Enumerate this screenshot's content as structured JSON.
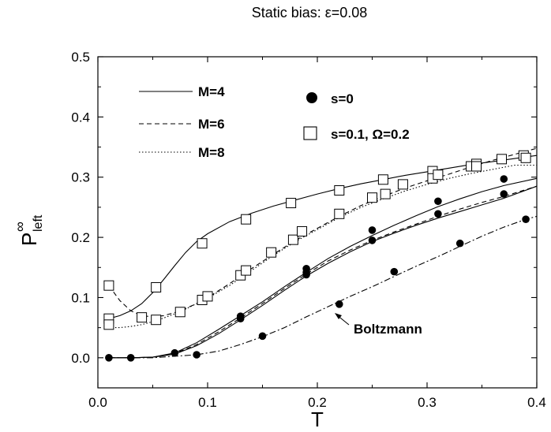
{
  "chart_data": {
    "type": "line",
    "title": "Static bias: ε=0.08",
    "xlabel": "T",
    "ylabel_main": "P",
    "ylabel_sup": "∞",
    "ylabel_sub": "left",
    "xlim": [
      0.0,
      0.4
    ],
    "ylim": [
      -0.05,
      0.5
    ],
    "x_ticks": [
      "0.0",
      "0.1",
      "0.2",
      "0.3",
      "0.4"
    ],
    "x_tick_values": [
      0.0,
      0.1,
      0.2,
      0.3,
      0.4
    ],
    "y_ticks": [
      "0.0",
      "0.1",
      "0.2",
      "0.3",
      "0.4",
      "0.5"
    ],
    "y_tick_values": [
      0.0,
      0.1,
      0.2,
      0.3,
      0.4,
      0.5
    ],
    "legend_lines": [
      {
        "label": "M=4",
        "dash": "solid"
      },
      {
        "label": "M=6",
        "dash": "dashed"
      },
      {
        "label": "M=8",
        "dash": "dotted"
      }
    ],
    "legend_markers": [
      {
        "label": "s=0",
        "marker": "filled-circle"
      },
      {
        "label": "s=0.1, Ω=0.2",
        "marker": "open-square"
      }
    ],
    "annotation": "Boltzmann",
    "series": [
      {
        "style": "solid",
        "group": "s0",
        "x": [
          0.01,
          0.03,
          0.05,
          0.07,
          0.09,
          0.11,
          0.13,
          0.15,
          0.17,
          0.19,
          0.21,
          0.23,
          0.25,
          0.27,
          0.29,
          0.31,
          0.33,
          0.35,
          0.37,
          0.4
        ],
        "y": [
          0.0,
          0.0,
          0.001,
          0.008,
          0.025,
          0.047,
          0.07,
          0.093,
          0.118,
          0.142,
          0.165,
          0.185,
          0.203,
          0.22,
          0.236,
          0.251,
          0.264,
          0.276,
          0.286,
          0.298
        ]
      },
      {
        "style": "dashed",
        "group": "s0",
        "x": [
          0.01,
          0.03,
          0.05,
          0.07,
          0.09,
          0.11,
          0.13,
          0.15,
          0.17,
          0.19,
          0.21,
          0.23,
          0.25,
          0.27,
          0.29,
          0.31,
          0.33,
          0.35,
          0.37,
          0.4
        ],
        "y": [
          0.0,
          0.0,
          0.001,
          0.007,
          0.022,
          0.043,
          0.066,
          0.09,
          0.115,
          0.139,
          0.161,
          0.179,
          0.195,
          0.209,
          0.222,
          0.235,
          0.247,
          0.258,
          0.268,
          0.285
        ]
      },
      {
        "style": "solid",
        "group": "s0",
        "x": [
          0.01,
          0.03,
          0.05,
          0.07,
          0.09,
          0.11,
          0.13,
          0.15,
          0.17,
          0.19,
          0.21,
          0.23,
          0.25,
          0.27,
          0.29,
          0.31,
          0.33,
          0.35,
          0.37,
          0.4
        ],
        "y": [
          0.0,
          0.0,
          0.001,
          0.006,
          0.02,
          0.04,
          0.063,
          0.087,
          0.112,
          0.136,
          0.157,
          0.176,
          0.193,
          0.207,
          0.22,
          0.232,
          0.243,
          0.254,
          0.265,
          0.285
        ]
      },
      {
        "style": "dashdot",
        "group": "boltzmann",
        "x": [
          0.01,
          0.05,
          0.09,
          0.11,
          0.13,
          0.15,
          0.17,
          0.19,
          0.21,
          0.23,
          0.25,
          0.27,
          0.29,
          0.31,
          0.33,
          0.35,
          0.37,
          0.39,
          0.4
        ],
        "y": [
          0.0,
          0.0,
          0.005,
          0.011,
          0.022,
          0.035,
          0.05,
          0.068,
          0.085,
          0.102,
          0.118,
          0.135,
          0.152,
          0.168,
          0.185,
          0.202,
          0.217,
          0.23,
          0.235
        ]
      },
      {
        "style": "solid",
        "group": "s01",
        "x": [
          0.01,
          0.02,
          0.03,
          0.04,
          0.05,
          0.06,
          0.07,
          0.08,
          0.09,
          0.1,
          0.12,
          0.14,
          0.16,
          0.18,
          0.2,
          0.22,
          0.24,
          0.26,
          0.28,
          0.3,
          0.32,
          0.34,
          0.36,
          0.38,
          0.4
        ],
        "y": [
          0.065,
          0.07,
          0.078,
          0.09,
          0.108,
          0.13,
          0.153,
          0.175,
          0.193,
          0.206,
          0.226,
          0.24,
          0.252,
          0.262,
          0.272,
          0.281,
          0.289,
          0.296,
          0.303,
          0.309,
          0.315,
          0.321,
          0.326,
          0.331,
          0.336
        ]
      },
      {
        "style": "dashed",
        "group": "s01",
        "x": [
          0.01,
          0.02,
          0.03,
          0.04,
          0.05,
          0.06,
          0.07,
          0.08,
          0.09,
          0.1,
          0.12,
          0.14,
          0.16,
          0.18,
          0.2,
          0.22,
          0.24,
          0.26,
          0.28,
          0.3,
          0.32,
          0.34,
          0.36,
          0.38,
          0.4
        ],
        "y": [
          0.12,
          0.095,
          0.078,
          0.07,
          0.068,
          0.07,
          0.075,
          0.082,
          0.09,
          0.1,
          0.123,
          0.148,
          0.172,
          0.195,
          0.215,
          0.235,
          0.253,
          0.268,
          0.282,
          0.294,
          0.305,
          0.317,
          0.328,
          0.338,
          0.348
        ]
      },
      {
        "style": "dotted",
        "group": "s01",
        "x": [
          0.01,
          0.02,
          0.03,
          0.04,
          0.05,
          0.06,
          0.07,
          0.08,
          0.09,
          0.1,
          0.12,
          0.14,
          0.16,
          0.18,
          0.2,
          0.22,
          0.24,
          0.26,
          0.28,
          0.3,
          0.32,
          0.34,
          0.36,
          0.38,
          0.4
        ],
        "y": [
          0.05,
          0.05,
          0.052,
          0.055,
          0.06,
          0.066,
          0.073,
          0.081,
          0.09,
          0.099,
          0.12,
          0.145,
          0.17,
          0.193,
          0.213,
          0.233,
          0.25,
          0.264,
          0.277,
          0.288,
          0.298,
          0.306,
          0.313,
          0.32,
          0.32
        ]
      }
    ],
    "filled_circles": {
      "x": [
        0.01,
        0.03,
        0.07,
        0.09,
        0.13,
        0.13,
        0.15,
        0.19,
        0.19,
        0.19,
        0.22,
        0.25,
        0.25,
        0.27,
        0.31,
        0.31,
        0.33,
        0.37,
        0.37,
        0.39
      ],
      "y": [
        0.0,
        0.0,
        0.008,
        0.005,
        0.069,
        0.065,
        0.036,
        0.148,
        0.142,
        0.138,
        0.089,
        0.212,
        0.195,
        0.143,
        0.26,
        0.239,
        0.19,
        0.297,
        0.272,
        0.23
      ]
    },
    "open_squares": {
      "x": [
        0.01,
        0.01,
        0.01,
        0.04,
        0.053,
        0.053,
        0.075,
        0.095,
        0.095,
        0.1,
        0.13,
        0.135,
        0.135,
        0.158,
        0.176,
        0.178,
        0.186,
        0.22,
        0.22,
        0.25,
        0.26,
        0.262,
        0.278,
        0.305,
        0.305,
        0.31,
        0.34,
        0.345,
        0.345,
        0.368,
        0.388,
        0.39
      ],
      "y": [
        0.12,
        0.065,
        0.055,
        0.067,
        0.117,
        0.063,
        0.076,
        0.19,
        0.096,
        0.102,
        0.137,
        0.23,
        0.145,
        0.175,
        0.257,
        0.196,
        0.21,
        0.278,
        0.239,
        0.266,
        0.296,
        0.272,
        0.288,
        0.31,
        0.298,
        0.304,
        0.318,
        0.322,
        0.318,
        0.33,
        0.336,
        0.332
      ]
    },
    "annotation_arrow_target": [
      0.211,
      0.074
    ]
  }
}
